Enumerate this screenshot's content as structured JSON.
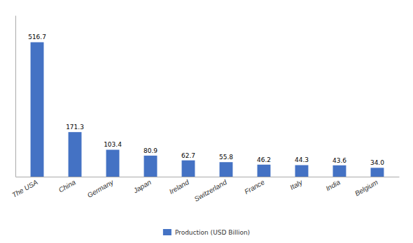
{
  "chart_data": {
    "type": "bar",
    "categories": [
      "The USA",
      "China",
      "Germany",
      "Japan",
      "Ireland",
      "Switzerland",
      "France",
      "Italy",
      "India",
      "Belgium"
    ],
    "series": [
      {
        "name": "Production (USD Billion)",
        "color": "#4472C4",
        "values": [
          516.7,
          171.3,
          103.4,
          80.9,
          62.7,
          55.8,
          46.2,
          44.3,
          43.6,
          34.0
        ],
        "value_labels": [
          "516.7",
          "171.3",
          "103.4",
          "80.9",
          "62.7",
          "55.8",
          "46.2",
          "44.3",
          "43.6",
          "34.0"
        ]
      }
    ],
    "ylim": [
      0,
      620
    ],
    "grid": false,
    "legend": "bottom",
    "data_labels": true,
    "tick_labels": "x"
  }
}
